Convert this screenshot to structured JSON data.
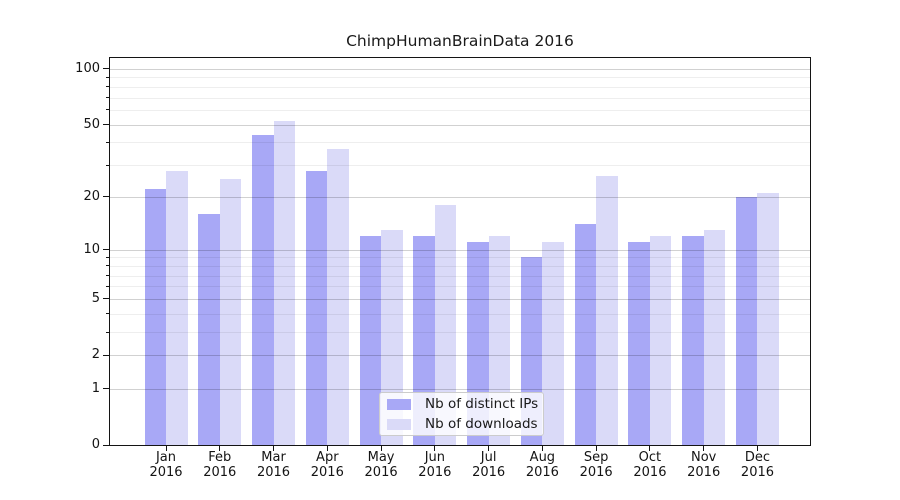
{
  "chart_data": {
    "type": "bar",
    "title": "ChimpHumanBrainData 2016",
    "categories": [
      "Jan 2016",
      "Feb 2016",
      "Mar 2016",
      "Apr 2016",
      "May 2016",
      "Jun 2016",
      "Jul 2016",
      "Aug 2016",
      "Sep 2016",
      "Oct 2016",
      "Nov 2016",
      "Dec 2016"
    ],
    "series": [
      {
        "name": "Nb of distinct IPs",
        "color": "#a8a8f6",
        "values": [
          22,
          16,
          44,
          28,
          12,
          12,
          11,
          9,
          14,
          11,
          12,
          20
        ]
      },
      {
        "name": "Nb of downloads",
        "color": "#dadaf8",
        "values": [
          28,
          25,
          52,
          37,
          13,
          18,
          12,
          11,
          26,
          12,
          13,
          21
        ]
      }
    ],
    "y_axis": {
      "scale": "log1p",
      "tick_labels": [
        100,
        50,
        20,
        10,
        5,
        2,
        1,
        0
      ],
      "minor_ticks": [
        3,
        4,
        6,
        7,
        8,
        9,
        30,
        40,
        60,
        70,
        80,
        90
      ],
      "ylim": [
        0,
        115
      ]
    },
    "x_axis": {
      "tick_label_lines": 2
    },
    "grid": true,
    "legend_position": "inside-bottom-center"
  }
}
